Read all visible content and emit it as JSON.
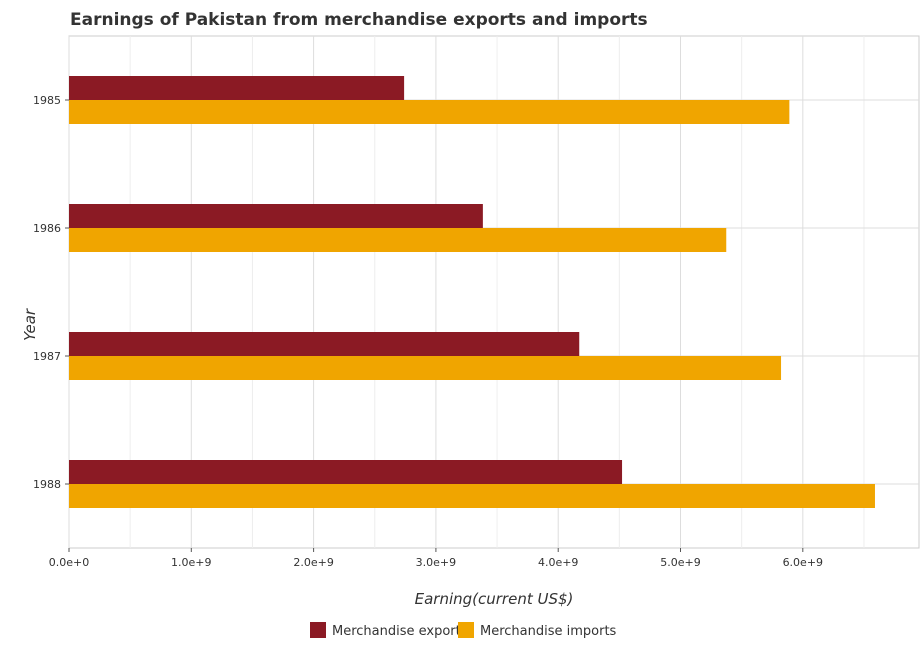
{
  "chart_data": {
    "type": "bar",
    "orientation": "horizontal",
    "title": "Earnings of Pakistan from merchandise exports and imports",
    "xlabel": "Earning(current US$)",
    "ylabel": "Year",
    "categories": [
      "1985",
      "1986",
      "1987",
      "1988"
    ],
    "series": [
      {
        "name": "Merchandise exports",
        "color": "#8b1a24",
        "values": [
          2740000000,
          3384000000,
          4172000000,
          4522000000
        ]
      },
      {
        "name": "Merchandise imports",
        "color": "#f0a500",
        "values": [
          5890000000,
          5374000000,
          5822000000,
          6590000000
        ]
      }
    ],
    "xlim": [
      0,
      6950000000
    ],
    "xticks": [
      0,
      1000000000,
      2000000000,
      3000000000,
      4000000000,
      5000000000,
      6000000000
    ],
    "xtick_labels": [
      "0.0e+0",
      "1.0e+9",
      "2.0e+9",
      "3.0e+9",
      "4.0e+9",
      "5.0e+9",
      "6.0e+9"
    ],
    "grid": true,
    "legend_position": "bottom"
  }
}
